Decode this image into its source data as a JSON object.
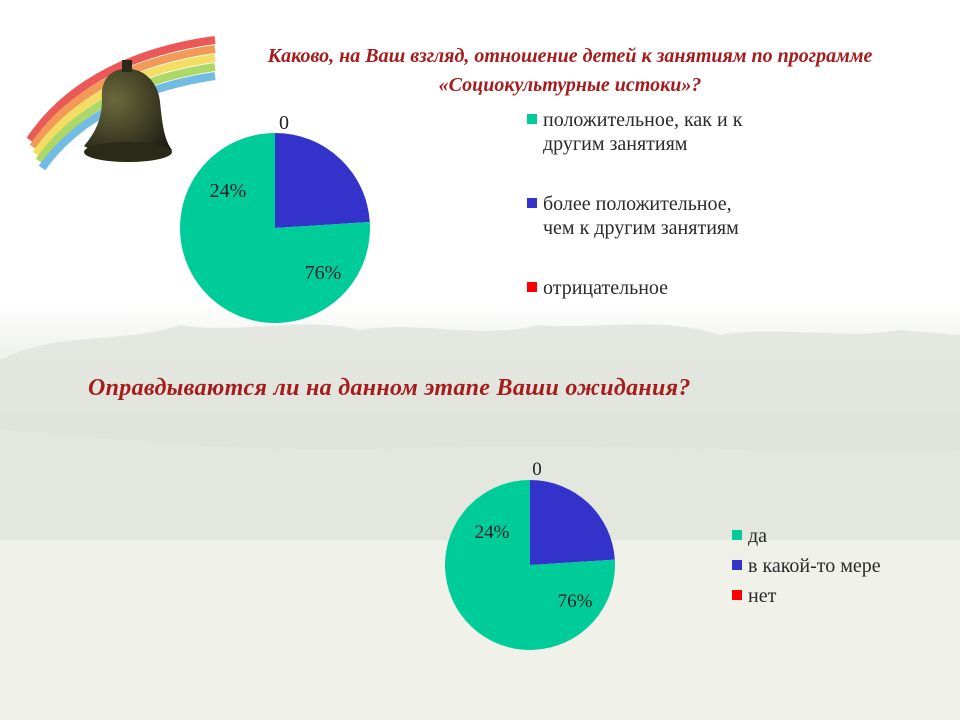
{
  "slide": {
    "title1": "Каково, на Ваш взгляд, отношение детей к занятиям по программе «Социокультурные истоки»?",
    "title2": "Оправдываются ли на данном этапе Ваши ожидания?"
  },
  "colors": {
    "title": "#a61c1c",
    "series": [
      "#00cc99",
      "#3333cc",
      "#ff0000"
    ]
  },
  "chart_data": [
    {
      "type": "pie",
      "title": "Каково, на Ваш взгляд, отношение детей к занятиям по программе «Социокультурные истоки»?",
      "categories": [
        "положительное, как и к другим занятиям",
        "более положительное, чем к другим занятиям",
        "отрицательное"
      ],
      "values": [
        76,
        24,
        0
      ],
      "data_labels": [
        "76%",
        "24%",
        "0"
      ],
      "legend": "right"
    },
    {
      "type": "pie",
      "title": "Оправдываются ли на данном этапе Ваши ожидания?",
      "categories": [
        "да",
        "в какой-то мере",
        "нет"
      ],
      "values": [
        76,
        24,
        0
      ],
      "data_labels": [
        "76%",
        "24%",
        "0"
      ],
      "legend": "right"
    }
  ]
}
